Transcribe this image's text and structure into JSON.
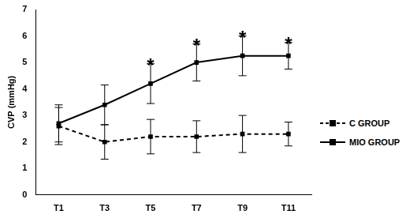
{
  "chart_data": {
    "type": "line",
    "y_label": "CVP (mmHg)",
    "categories": [
      "T1",
      "T3",
      "T5",
      "T7",
      "T9",
      "T11"
    ],
    "series": [
      {
        "name": "C GROUP",
        "color": "#000000",
        "marker": "square",
        "line_style": "dashed",
        "values": [
          2.6,
          2.0,
          2.2,
          2.2,
          2.3,
          2.3
        ],
        "errors": [
          0.7,
          0.65,
          0.65,
          0.6,
          0.7,
          0.45
        ]
      },
      {
        "name": "MIO GROUP",
        "color": "#000000",
        "marker": "square",
        "line_style": "solid",
        "values": [
          2.7,
          3.4,
          4.2,
          5.0,
          5.25,
          5.25
        ],
        "errors": [
          0.7,
          0.75,
          0.75,
          0.7,
          0.75,
          0.5
        ]
      }
    ],
    "annotations": [
      {
        "series": "MIO GROUP",
        "x": "T5",
        "text": "*"
      },
      {
        "series": "MIO GROUP",
        "x": "T7",
        "text": "*"
      },
      {
        "series": "MIO GROUP",
        "x": "T9",
        "text": "*"
      },
      {
        "series": "MIO GROUP",
        "x": "T11",
        "text": "*"
      }
    ],
    "ylim": [
      0,
      7
    ],
    "yticks": [
      0,
      1,
      2,
      3,
      4,
      5,
      6,
      7
    ],
    "grid": false,
    "legend": "right"
  }
}
